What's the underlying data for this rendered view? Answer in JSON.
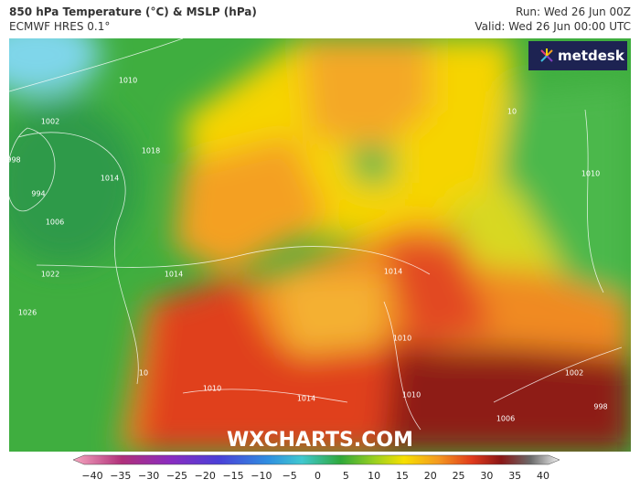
{
  "header": {
    "title": "850 hPa Temperature (°C) & MSLP (hPa)",
    "model": "ECMWF HRES 0.1°",
    "run": "Run: Wed 26 Jun 00Z",
    "valid": "Valid: Wed 26 Jun 00:00 UTC"
  },
  "logo": "metdesk",
  "watermark": "WXCHARTS.COM",
  "isobar_labels": [
    "1010",
    "1002",
    "998",
    "994",
    "1006",
    "1014",
    "1018",
    "1014",
    "1022",
    "1026",
    "1010",
    "1014",
    "1014",
    "1010",
    "1010",
    "1006",
    "1002",
    "998",
    "1010",
    "10",
    "10"
  ],
  "colorbar": {
    "ticks": [
      "−40",
      "−35",
      "−30",
      "−25",
      "−20",
      "−15",
      "−10",
      "−5",
      "0",
      "5",
      "10",
      "15",
      "20",
      "25",
      "30",
      "35",
      "40"
    ]
  }
}
